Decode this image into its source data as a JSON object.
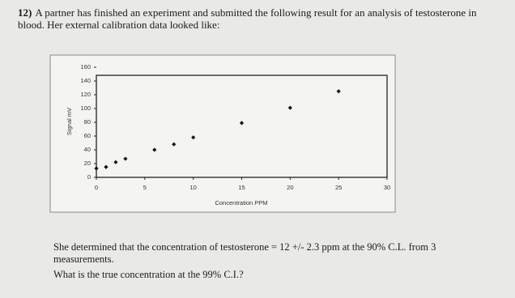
{
  "question": {
    "number": "12)",
    "text": "A partner has finished an experiment and submitted the following result for an analysis of testosterone in blood. Her external calibration data looked like:"
  },
  "chart_data": {
    "type": "scatter",
    "x_label": "Concentration PPM",
    "y_label": "Signal mV",
    "x": [
      0,
      1,
      2,
      3,
      6,
      8,
      10,
      15,
      20,
      25
    ],
    "values": [
      13,
      15,
      22,
      27,
      40,
      48,
      58,
      79,
      101,
      125
    ],
    "color": "#111111",
    "xlim": [
      0,
      30
    ],
    "xticks": [
      0,
      5,
      10,
      15,
      20,
      25,
      30
    ],
    "ylim": [
      0,
      160
    ],
    "yticks": [
      0,
      20,
      40,
      60,
      80,
      100,
      120,
      140,
      160
    ]
  },
  "paragraphs": [
    "She determined that the concentration of testosterone = 12 +/- 2.3 ppm at the 90% C.L. from 3 measurements.",
    "What is the true concentration at the 99% C.I.?"
  ]
}
